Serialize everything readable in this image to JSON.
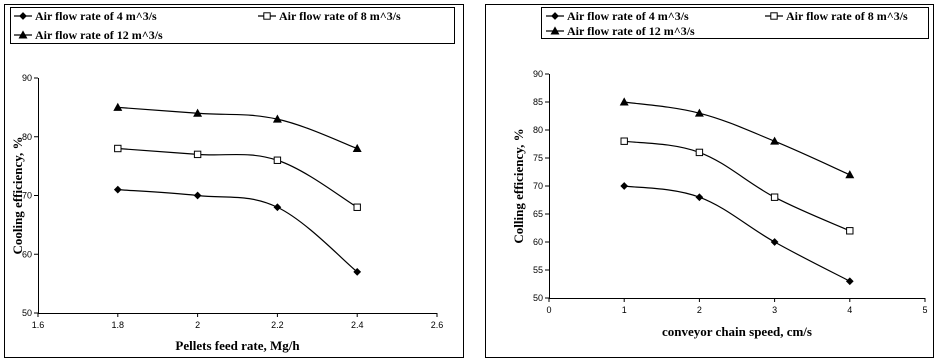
{
  "chart_data": [
    {
      "type": "line",
      "xlabel": "Pellets feed rate, Mg/h",
      "ylabel": "Cooling efficiency, %",
      "xlim": [
        1.6,
        2.6
      ],
      "ylim": [
        50,
        90
      ],
      "xticks": [
        "1.6",
        "1.8",
        "2",
        "2.2",
        "2.4",
        "2.6"
      ],
      "yticks": [
        "50",
        "60",
        "70",
        "80",
        "90"
      ],
      "x": [
        1.8,
        2.0,
        2.2,
        2.4
      ],
      "grid": false,
      "series": [
        {
          "name": "Air flow rate of 4 m^3/s",
          "marker": "diamond",
          "values": [
            71,
            70,
            68,
            57
          ]
        },
        {
          "name": "Air flow rate of 8 m^3/s",
          "marker": "square-open",
          "values": [
            78,
            77,
            76,
            68
          ]
        },
        {
          "name": "Air flow rate of 12 m^3/s",
          "marker": "triangle",
          "values": [
            85,
            84,
            83,
            78
          ]
        }
      ]
    },
    {
      "type": "line",
      "xlabel": "conveyor chain speed, cm/s",
      "ylabel": "Colling efficiency, %",
      "xlim": [
        0,
        5
      ],
      "ylim": [
        50,
        90
      ],
      "xticks": [
        "0",
        "1",
        "2",
        "3",
        "4",
        "5"
      ],
      "yticks": [
        "50",
        "55",
        "60",
        "65",
        "70",
        "75",
        "80",
        "85",
        "90"
      ],
      "x": [
        1,
        2,
        3,
        4
      ],
      "grid": false,
      "series": [
        {
          "name": "Air flow rate of 4 m^3/s",
          "marker": "diamond",
          "values": [
            70,
            68,
            60,
            53
          ]
        },
        {
          "name": "Air flow rate of 8 m^3/s",
          "marker": "square-open",
          "values": [
            78,
            76,
            68,
            62
          ]
        },
        {
          "name": "Air flow rate of 12 m^3/s",
          "marker": "triangle",
          "values": [
            85,
            83,
            78,
            72
          ]
        }
      ]
    }
  ]
}
